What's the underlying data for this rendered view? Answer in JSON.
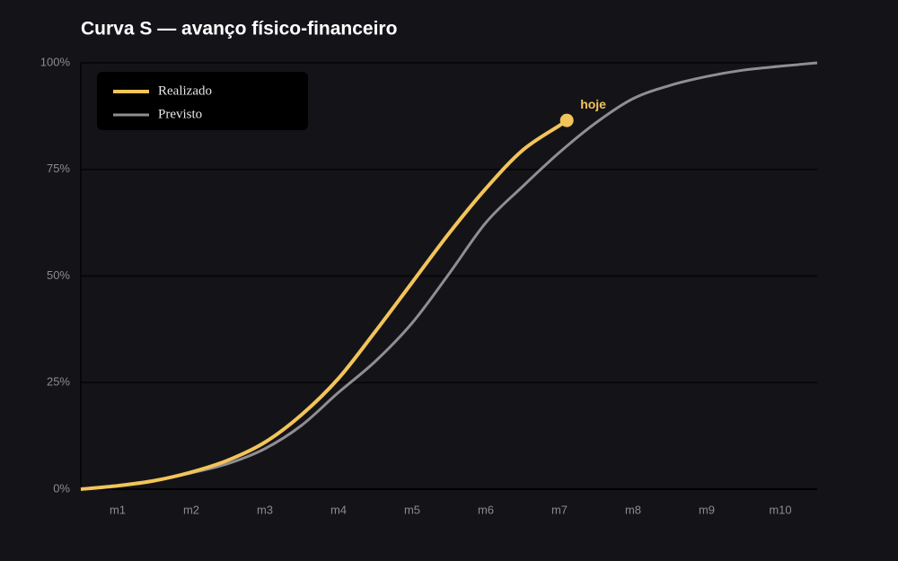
{
  "chart_data": {
    "type": "line",
    "title": "Curva S — avanço físico-financeiro",
    "xlim": [
      0.5,
      10.5
    ],
    "xticks": [
      {
        "value": 1,
        "label": "m1"
      },
      {
        "value": 2,
        "label": "m2"
      },
      {
        "value": 3,
        "label": "m3"
      },
      {
        "value": 4,
        "label": "m4"
      },
      {
        "value": 5,
        "label": "m5"
      },
      {
        "value": 6,
        "label": "m6"
      },
      {
        "value": 7,
        "label": "m7"
      },
      {
        "value": 8,
        "label": "m8"
      },
      {
        "value": 9,
        "label": "m9"
      },
      {
        "value": 10,
        "label": "m10"
      }
    ],
    "ylim": [
      0,
      100
    ],
    "yticks": [
      {
        "value": 0,
        "label": "0%"
      },
      {
        "value": 25,
        "label": "25%"
      },
      {
        "value": 50,
        "label": "50%"
      },
      {
        "value": 75,
        "label": "75%"
      },
      {
        "value": 100,
        "label": "100%"
      }
    ],
    "grid": true,
    "legend": "upper left",
    "annotation": "hoje",
    "series": [
      {
        "name": "Realizado",
        "color": "#f2c45a",
        "x": [
          0.5,
          1,
          1.5,
          2,
          2.5,
          3,
          3.5,
          4,
          4.5,
          5,
          5.5,
          6,
          6.5,
          7,
          7.1
        ],
        "values": [
          0,
          0.8,
          2,
          4,
          6.8,
          11,
          17.5,
          26,
          37,
          48.5,
          60,
          70.5,
          79.5,
          85.3,
          86.5
        ]
      },
      {
        "name": "Previsto",
        "color": "#8e8e93",
        "x": [
          0.5,
          1,
          1.5,
          2,
          2.5,
          3,
          3.5,
          4,
          4.5,
          5,
          5.5,
          6,
          6.5,
          7,
          7.5,
          8,
          8.5,
          9,
          9.5,
          10,
          10.5
        ],
        "values": [
          0,
          0.8,
          2,
          3.8,
          6,
          9.5,
          15,
          22.7,
          30,
          39,
          50.5,
          62.5,
          71,
          79,
          86,
          91.6,
          94.7,
          96.8,
          98.3,
          99.2,
          100
        ]
      }
    ]
  }
}
